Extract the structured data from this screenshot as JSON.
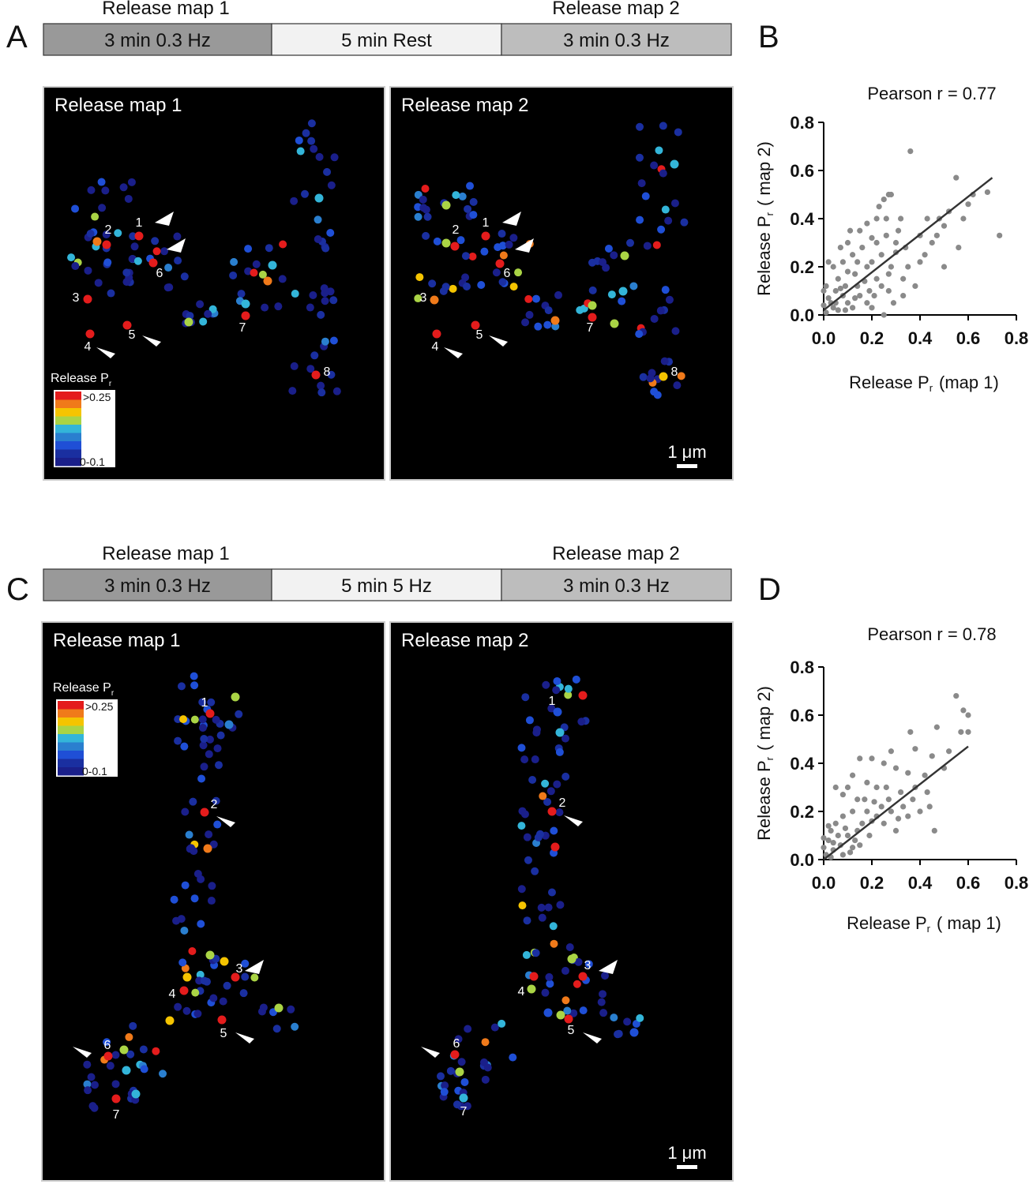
{
  "panels": {
    "A": {
      "letter": "A",
      "timeline": {
        "top_left_label": "Release map 1",
        "top_right_label": "Release map 2",
        "segments": [
          "3 min 0.3 Hz",
          "5 min Rest",
          "3 min 0.3 Hz"
        ],
        "colors": [
          "#999999",
          "#f2f2f2",
          "#bdbdbd"
        ]
      },
      "maps": [
        {
          "title": "Release map 1",
          "has_scalebar": false,
          "labels": [
            "1",
            "2",
            "3",
            "4",
            "5",
            "6",
            "7",
            "8"
          ]
        },
        {
          "title": "Release map 2",
          "has_scalebar": true,
          "labels": [
            "1",
            "2",
            "3",
            "4",
            "5",
            "6",
            "7",
            "8"
          ]
        }
      ],
      "legend": {
        "title": "Release P",
        "subscript": "r",
        "top": ">0.25",
        "bottom": "0-0.1"
      },
      "scalebar": "1 μm"
    },
    "B": {
      "letter": "B",
      "annotation": "Pearson r = 0.77",
      "xlabel": "Release P",
      "xlabel_sub": "r",
      "xlabel_suffix": "(map 1)",
      "ylabel": "Release P",
      "ylabel_sub": "r",
      "ylabel_suffix": "( map 2)"
    },
    "C": {
      "letter": "C",
      "timeline": {
        "top_left_label": "Release map 1",
        "top_right_label": "Release map 2",
        "segments": [
          "3 min 0.3 Hz",
          "5 min 5 Hz",
          "3 min 0.3 Hz"
        ],
        "colors": [
          "#999999",
          "#f2f2f2",
          "#bdbdbd"
        ]
      },
      "maps": [
        {
          "title": "Release map 1",
          "has_scalebar": false,
          "labels": [
            "1",
            "2",
            "3",
            "4",
            "5",
            "6",
            "7"
          ]
        },
        {
          "title": "Release map 2",
          "has_scalebar": true,
          "labels": [
            "1",
            "2",
            "3",
            "4",
            "5",
            "6",
            "7"
          ]
        }
      ],
      "legend": {
        "title": "Release P",
        "subscript": "r",
        "top": ">0.25",
        "bottom": "0-0.1"
      },
      "scalebar": "1 μm"
    },
    "D": {
      "letter": "D",
      "annotation": "Pearson r = 0.78",
      "xlabel": "Release P",
      "xlabel_sub": "r",
      "xlabel_suffix": "( map 1)",
      "ylabel": "Release P",
      "ylabel_sub": "r",
      "ylabel_suffix": "( map 2)"
    }
  },
  "colormap": [
    "#1a1f8a",
    "#1a2fa0",
    "#1f4fd6",
    "#2a7fcf",
    "#33b5d9",
    "#aad445",
    "#f5c400",
    "#f07a1a",
    "#e41c1c"
  ],
  "chart_data": [
    {
      "type": "scatter",
      "title": "Pearson r = 0.77",
      "xlabel": "Release Pr (map 1)",
      "ylabel": "Release Pr ( map 2)",
      "xlim": [
        0,
        0.8
      ],
      "ylim": [
        0,
        0.8
      ],
      "xticks": [
        "0.0",
        "0.2",
        "0.4",
        "0.6",
        "0.8"
      ],
      "yticks": [
        "0.0",
        "0.2",
        "0.4",
        "0.6",
        "0.8"
      ],
      "points_color": "#8a8a8a",
      "fit_line": {
        "x": [
          0.0,
          0.7
        ],
        "y": [
          0.02,
          0.57
        ]
      },
      "points": [
        [
          0.36,
          0.68
        ],
        [
          0.73,
          0.33
        ],
        [
          0.56,
          0.28
        ],
        [
          0.68,
          0.51
        ],
        [
          0.55,
          0.57
        ],
        [
          0.6,
          0.46
        ],
        [
          0.27,
          0.5
        ],
        [
          0.25,
          0.48
        ],
        [
          0.28,
          0.5
        ],
        [
          0.22,
          0.4
        ],
        [
          0.32,
          0.4
        ],
        [
          0.18,
          0.38
        ],
        [
          0.4,
          0.33
        ],
        [
          0.45,
          0.3
        ],
        [
          0.5,
          0.37
        ],
        [
          0.3,
          0.3
        ],
        [
          0.35,
          0.2
        ],
        [
          0.4,
          0.22
        ],
        [
          0.43,
          0.4
        ],
        [
          0.48,
          0.4
        ],
        [
          0.52,
          0.43
        ],
        [
          0.22,
          0.3
        ],
        [
          0.26,
          0.33
        ],
        [
          0.3,
          0.26
        ],
        [
          0.38,
          0.12
        ],
        [
          0.33,
          0.15
        ],
        [
          0.27,
          0.1
        ],
        [
          0.29,
          0.05
        ],
        [
          0.25,
          0.0
        ],
        [
          0.2,
          0.03
        ],
        [
          0.15,
          0.35
        ],
        [
          0.1,
          0.3
        ],
        [
          0.12,
          0.25
        ],
        [
          0.08,
          0.22
        ],
        [
          0.18,
          0.2
        ],
        [
          0.16,
          0.28
        ],
        [
          0.22,
          0.15
        ],
        [
          0.19,
          0.1
        ],
        [
          0.14,
          0.12
        ],
        [
          0.1,
          0.18
        ],
        [
          0.06,
          0.15
        ],
        [
          0.04,
          0.2
        ],
        [
          0.02,
          0.22
        ],
        [
          0.05,
          0.1
        ],
        [
          0.08,
          0.08
        ],
        [
          0.1,
          0.05
        ],
        [
          0.12,
          0.03
        ],
        [
          0.15,
          0.08
        ],
        [
          0.03,
          0.05
        ],
        [
          0.01,
          0.12
        ],
        [
          0.06,
          0.02
        ],
        [
          0.2,
          0.22
        ],
        [
          0.24,
          0.25
        ],
        [
          0.28,
          0.2
        ],
        [
          0.34,
          0.28
        ],
        [
          0.42,
          0.25
        ],
        [
          0.47,
          0.33
        ],
        [
          0.58,
          0.4
        ],
        [
          0.62,
          0.5
        ],
        [
          0.5,
          0.2
        ],
        [
          0.13,
          0.17
        ],
        [
          0.17,
          0.14
        ],
        [
          0.09,
          0.12
        ],
        [
          0.07,
          0.28
        ],
        [
          0.11,
          0.35
        ],
        [
          0.26,
          0.4
        ],
        [
          0.31,
          0.35
        ],
        [
          0.23,
          0.45
        ],
        [
          0.2,
          0.32
        ],
        [
          0.14,
          0.22
        ],
        [
          0.04,
          0.03
        ],
        [
          0.02,
          0.07
        ],
        [
          0.0,
          0.1
        ],
        [
          0.0,
          0.04
        ],
        [
          0.01,
          0.01
        ],
        [
          0.05,
          0.05
        ],
        [
          0.07,
          0.11
        ],
        [
          0.09,
          0.02
        ],
        [
          0.13,
          0.07
        ],
        [
          0.18,
          0.05
        ],
        [
          0.21,
          0.08
        ],
        [
          0.24,
          0.12
        ],
        [
          0.27,
          0.17
        ],
        [
          0.33,
          0.08
        ]
      ]
    },
    {
      "type": "scatter",
      "title": "Pearson r = 0.78",
      "xlabel": "Release Pr ( map 1)",
      "ylabel": "Release Pr ( map 2)",
      "xlim": [
        0,
        0.8
      ],
      "ylim": [
        0,
        0.8
      ],
      "xticks": [
        "0.0",
        "0.2",
        "0.4",
        "0.6",
        "0.8"
      ],
      "yticks": [
        "0.0",
        "0.2",
        "0.4",
        "0.6",
        "0.8"
      ],
      "points_color": "#8a8a8a",
      "fit_line": {
        "x": [
          0.0,
          0.6
        ],
        "y": [
          0.0,
          0.47
        ]
      },
      "points": [
        [
          0.55,
          0.68
        ],
        [
          0.58,
          0.62
        ],
        [
          0.6,
          0.53
        ],
        [
          0.57,
          0.53
        ],
        [
          0.6,
          0.6
        ],
        [
          0.47,
          0.55
        ],
        [
          0.36,
          0.53
        ],
        [
          0.45,
          0.43
        ],
        [
          0.52,
          0.45
        ],
        [
          0.38,
          0.46
        ],
        [
          0.42,
          0.35
        ],
        [
          0.35,
          0.36
        ],
        [
          0.3,
          0.38
        ],
        [
          0.28,
          0.45
        ],
        [
          0.25,
          0.4
        ],
        [
          0.22,
          0.3
        ],
        [
          0.27,
          0.25
        ],
        [
          0.32,
          0.28
        ],
        [
          0.4,
          0.2
        ],
        [
          0.46,
          0.12
        ],
        [
          0.35,
          0.18
        ],
        [
          0.3,
          0.12
        ],
        [
          0.2,
          0.42
        ],
        [
          0.15,
          0.42
        ],
        [
          0.18,
          0.32
        ],
        [
          0.12,
          0.35
        ],
        [
          0.1,
          0.3
        ],
        [
          0.08,
          0.27
        ],
        [
          0.05,
          0.3
        ],
        [
          0.14,
          0.25
        ],
        [
          0.18,
          0.2
        ],
        [
          0.22,
          0.18
        ],
        [
          0.25,
          0.15
        ],
        [
          0.16,
          0.15
        ],
        [
          0.12,
          0.2
        ],
        [
          0.08,
          0.18
        ],
        [
          0.05,
          0.15
        ],
        [
          0.03,
          0.12
        ],
        [
          0.02,
          0.08
        ],
        [
          0.0,
          0.05
        ],
        [
          0.01,
          0.02
        ],
        [
          0.04,
          0.04
        ],
        [
          0.07,
          0.06
        ],
        [
          0.1,
          0.1
        ],
        [
          0.13,
          0.08
        ],
        [
          0.06,
          0.1
        ],
        [
          0.09,
          0.13
        ],
        [
          0.11,
          0.03
        ],
        [
          0.14,
          0.12
        ],
        [
          0.19,
          0.1
        ],
        [
          0.24,
          0.22
        ],
        [
          0.28,
          0.2
        ],
        [
          0.33,
          0.22
        ],
        [
          0.38,
          0.3
        ],
        [
          0.43,
          0.28
        ],
        [
          0.5,
          0.38
        ],
        [
          0.17,
          0.25
        ],
        [
          0.2,
          0.16
        ],
        [
          0.04,
          0.07
        ],
        [
          0.02,
          0.14
        ],
        [
          0.0,
          0.09
        ],
        [
          0.03,
          0.01
        ],
        [
          0.08,
          0.02
        ],
        [
          0.12,
          0.05
        ],
        [
          0.15,
          0.06
        ],
        [
          0.21,
          0.24
        ],
        [
          0.26,
          0.3
        ],
        [
          0.31,
          0.17
        ],
        [
          0.37,
          0.25
        ],
        [
          0.44,
          0.22
        ]
      ]
    }
  ]
}
